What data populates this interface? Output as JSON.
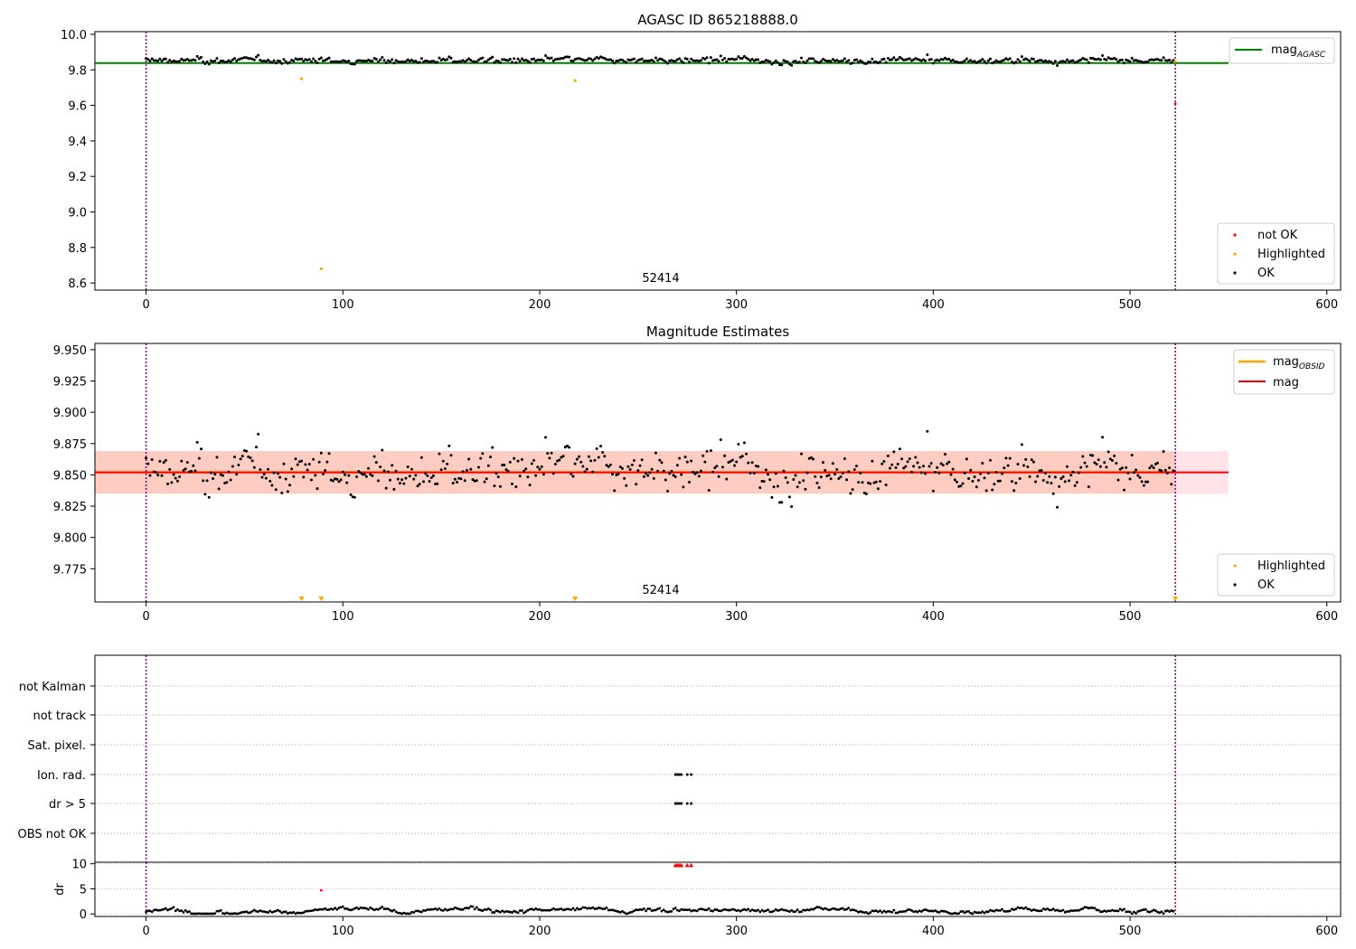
{
  "figure": {
    "colors": {
      "ok": "#000000",
      "highlighted": "#ffa500",
      "not_ok": "#ff0000",
      "agasc_line": "#008000",
      "mag_line": "#ff0000",
      "obsid_line": "#ffa500",
      "obs_marker": "#800080",
      "band_outer": "#ffc0cb",
      "band_inner": "#ffa07a"
    }
  },
  "chart_data": [
    {
      "type": "scatter",
      "title": "AGASC ID 865218888.0",
      "xlim": [
        -26,
        607
      ],
      "ylim": [
        8.56,
        10.015
      ],
      "xticks": [
        "0",
        "100",
        "200",
        "300",
        "400",
        "500",
        "600"
      ],
      "yticks": [
        "10.0",
        "9.8",
        "9.6",
        "9.4",
        "9.2",
        "9.0",
        "8.8",
        "8.6"
      ],
      "obs_lines": [
        0,
        523
      ],
      "obsid_label": "52414",
      "mag_agasc": 9.838,
      "legend_top": {
        "label": "mag",
        "subscript": "AGASC"
      },
      "legend_bottom": [
        "not OK",
        "Highlighted",
        "OK"
      ],
      "ok": {
        "x_start": 0,
        "x_end": 522,
        "mean": 9.852,
        "noise": 0.02
      },
      "highlighted": [
        [
          79,
          9.75
        ],
        [
          89,
          8.68
        ],
        [
          218,
          9.74
        ],
        [
          523,
          9.848
        ]
      ],
      "not_ok": [
        [
          523,
          9.61
        ]
      ]
    },
    {
      "type": "scatter",
      "title": "Magnitude Estimates",
      "xlim": [
        -26,
        607
      ],
      "ylim": [
        9.7485,
        9.955
      ],
      "xticks": [
        "0",
        "100",
        "200",
        "300",
        "400",
        "500",
        "600"
      ],
      "yticks": [
        "9.950",
        "9.925",
        "9.900",
        "9.875",
        "9.850",
        "9.825",
        "9.800",
        "9.775"
      ],
      "obs_lines": [
        0,
        523
      ],
      "obsid_label": "52414",
      "mag": 9.852,
      "mag_obsid": 9.852,
      "band_outer": [
        9.835,
        9.869
      ],
      "band_inner": [
        9.835,
        9.869
      ],
      "legend_top": [
        {
          "label": "mag",
          "subscript": "OBSID"
        },
        {
          "label": "mag",
          "subscript": ""
        }
      ],
      "legend_bottom": [
        "Highlighted",
        "OK"
      ],
      "highlighted_clipped": [
        79,
        89,
        218,
        523
      ]
    },
    {
      "type": "scatter",
      "categories": [
        "not Kalman",
        "not track",
        "Sat. pixel.",
        "Ion. rad.",
        "dr > 5",
        "OBS not OK"
      ],
      "xlim": [
        -26,
        607
      ],
      "obs_lines": [
        0,
        523
      ],
      "flag_points": {
        "Ion. rad.": [
          269,
          270,
          271,
          272,
          275,
          277
        ],
        "dr > 5": [
          269,
          270,
          271,
          272,
          275,
          277
        ]
      }
    },
    {
      "type": "scatter",
      "ylabel": "dr",
      "xlim": [
        -26,
        607
      ],
      "ylim": [
        -0.5,
        10.3
      ],
      "xticks": [
        "0",
        "100",
        "200",
        "300",
        "400",
        "500",
        "600"
      ],
      "yticks": [
        "10",
        "5",
        "0"
      ],
      "obs_lines": [
        0,
        523
      ],
      "ok": {
        "x_start": 0,
        "x_end": 522
      },
      "not_ok": [
        [
          89,
          4.7
        ]
      ],
      "clipped_high": [
        269,
        270,
        271,
        272,
        275,
        277
      ]
    }
  ]
}
